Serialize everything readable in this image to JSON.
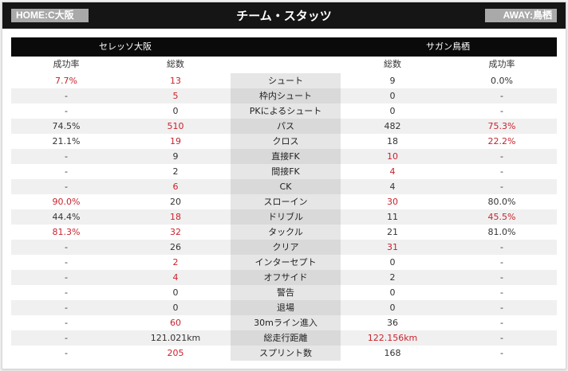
{
  "header": {
    "home_label": "HOME:C大阪",
    "away_label": "AWAY:鳥栖",
    "title": "チーム・スタッツ"
  },
  "teams": {
    "home": "セレッソ大阪",
    "away": "サガン鳥栖"
  },
  "columns": {
    "home_rate": "成功率",
    "home_total": "総数",
    "away_total": "総数",
    "away_rate": "成功率"
  },
  "highlight_color": "#c9232d",
  "rows": [
    {
      "label": "シュート",
      "home_rate": "7.7%",
      "home_total": "13",
      "away_total": "9",
      "away_rate": "0.0%",
      "hi": [
        "home_rate",
        "home_total"
      ]
    },
    {
      "label": "枠内シュート",
      "home_rate": "-",
      "home_total": "5",
      "away_total": "0",
      "away_rate": "-",
      "hi": [
        "home_total"
      ]
    },
    {
      "label": "PKによるシュート",
      "home_rate": "-",
      "home_total": "0",
      "away_total": "0",
      "away_rate": "-",
      "hi": []
    },
    {
      "label": "パス",
      "home_rate": "74.5%",
      "home_total": "510",
      "away_total": "482",
      "away_rate": "75.3%",
      "hi": [
        "home_total",
        "away_rate"
      ]
    },
    {
      "label": "クロス",
      "home_rate": "21.1%",
      "home_total": "19",
      "away_total": "18",
      "away_rate": "22.2%",
      "hi": [
        "home_total",
        "away_rate"
      ]
    },
    {
      "label": "直接FK",
      "home_rate": "-",
      "home_total": "9",
      "away_total": "10",
      "away_rate": "-",
      "hi": [
        "away_total"
      ]
    },
    {
      "label": "間接FK",
      "home_rate": "-",
      "home_total": "2",
      "away_total": "4",
      "away_rate": "-",
      "hi": [
        "away_total"
      ]
    },
    {
      "label": "CK",
      "home_rate": "-",
      "home_total": "6",
      "away_total": "4",
      "away_rate": "-",
      "hi": [
        "home_total"
      ]
    },
    {
      "label": "スローイン",
      "home_rate": "90.0%",
      "home_total": "20",
      "away_total": "30",
      "away_rate": "80.0%",
      "hi": [
        "home_rate",
        "away_total"
      ]
    },
    {
      "label": "ドリブル",
      "home_rate": "44.4%",
      "home_total": "18",
      "away_total": "11",
      "away_rate": "45.5%",
      "hi": [
        "home_total",
        "away_rate"
      ]
    },
    {
      "label": "タックル",
      "home_rate": "81.3%",
      "home_total": "32",
      "away_total": "21",
      "away_rate": "81.0%",
      "hi": [
        "home_rate",
        "home_total"
      ]
    },
    {
      "label": "クリア",
      "home_rate": "-",
      "home_total": "26",
      "away_total": "31",
      "away_rate": "-",
      "hi": [
        "away_total"
      ]
    },
    {
      "label": "インターセプト",
      "home_rate": "-",
      "home_total": "2",
      "away_total": "0",
      "away_rate": "-",
      "hi": [
        "home_total"
      ]
    },
    {
      "label": "オフサイド",
      "home_rate": "-",
      "home_total": "4",
      "away_total": "2",
      "away_rate": "-",
      "hi": [
        "home_total"
      ]
    },
    {
      "label": "警告",
      "home_rate": "-",
      "home_total": "0",
      "away_total": "0",
      "away_rate": "-",
      "hi": []
    },
    {
      "label": "退場",
      "home_rate": "-",
      "home_total": "0",
      "away_total": "0",
      "away_rate": "-",
      "hi": []
    },
    {
      "label": "30mライン進入",
      "home_rate": "-",
      "home_total": "60",
      "away_total": "36",
      "away_rate": "-",
      "hi": [
        "home_total"
      ]
    },
    {
      "label": "総走行距離",
      "home_rate": "-",
      "home_total": "121.021km",
      "away_total": "122.156km",
      "away_rate": "-",
      "hi": [
        "away_total"
      ]
    },
    {
      "label": "スプリント数",
      "home_rate": "-",
      "home_total": "205",
      "away_total": "168",
      "away_rate": "-",
      "hi": [
        "home_total"
      ]
    }
  ]
}
